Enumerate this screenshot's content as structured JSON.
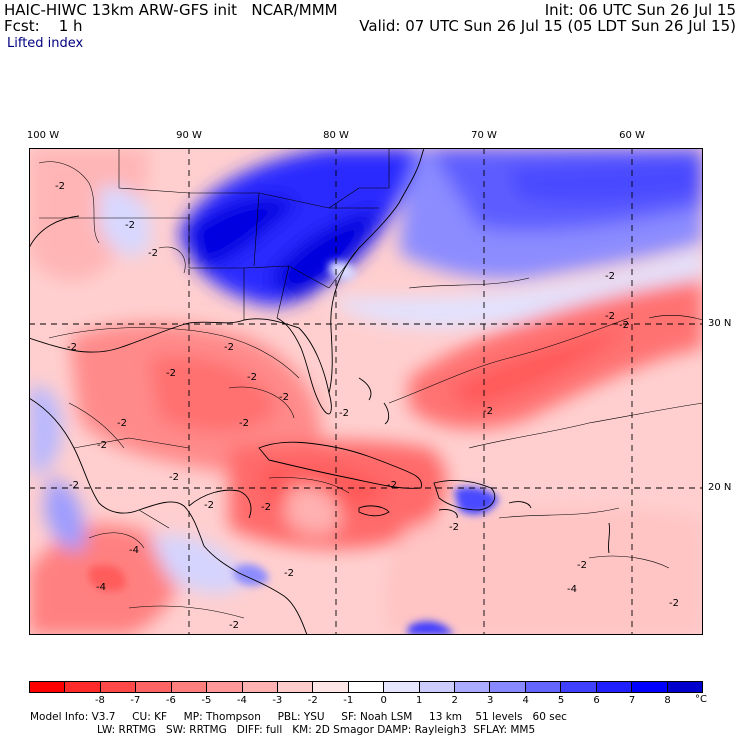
{
  "header": {
    "title": "HAIC-HIWC 13km ARW-GFS init   NCAR/MMM",
    "init": "Init: 06 UTC Sun 26 Jul 15",
    "fcst": "Fcst:    1 h",
    "valid": "Valid: 07 UTC Sun 26 Jul 15 (05 LDT Sun 26 Jul 15)",
    "field": "Lifted index"
  },
  "axes": {
    "lon_labels": [
      "100 W",
      "90 W",
      "80 W",
      "70 W",
      "60 W"
    ],
    "lat_labels": [
      "30 N",
      "20 N"
    ]
  },
  "contour_labels": [
    "-2",
    "-2",
    "-2",
    "-2",
    "-2",
    "-2",
    "-2",
    "-2",
    "-2",
    "-2",
    "-2",
    "-2",
    "-2",
    "-2",
    "-2",
    "-4",
    "-4",
    "-2",
    "-2",
    "-2",
    "-2",
    "-2",
    "-2",
    "-2",
    "-2",
    "-4",
    "-2",
    "-2",
    "-2"
  ],
  "colorbar": {
    "ticks": [
      "-8",
      "-7",
      "-6",
      "-5",
      "-4",
      "-3",
      "-2",
      "-1",
      "0",
      "1",
      "2",
      "3",
      "4",
      "5",
      "6",
      "7",
      "8"
    ],
    "unit": "°C",
    "colors": [
      "#ff0000",
      "#ff2a2a",
      "#ff4848",
      "#ff6464",
      "#ff7e7e",
      "#ff9898",
      "#ffb2b2",
      "#ffcccc",
      "#ffe6e6",
      "#ffffff",
      "#e6e6ff",
      "#ccccff",
      "#aaaaff",
      "#8888ff",
      "#6464ff",
      "#4040ff",
      "#2020ff",
      "#0000ff",
      "#0000cc"
    ]
  },
  "footer": {
    "line1": "Model Info: V3.7     CU: KF     MP: Thompson     PBL: YSU     SF: Noah LSM     13 km    51 levels   60 sec",
    "line2": "LW: RRTMG   SW: RRTMG   DIFF: full   KM: 2D Smagor DAMP: Rayleigh3  SFLAY: MM5"
  }
}
